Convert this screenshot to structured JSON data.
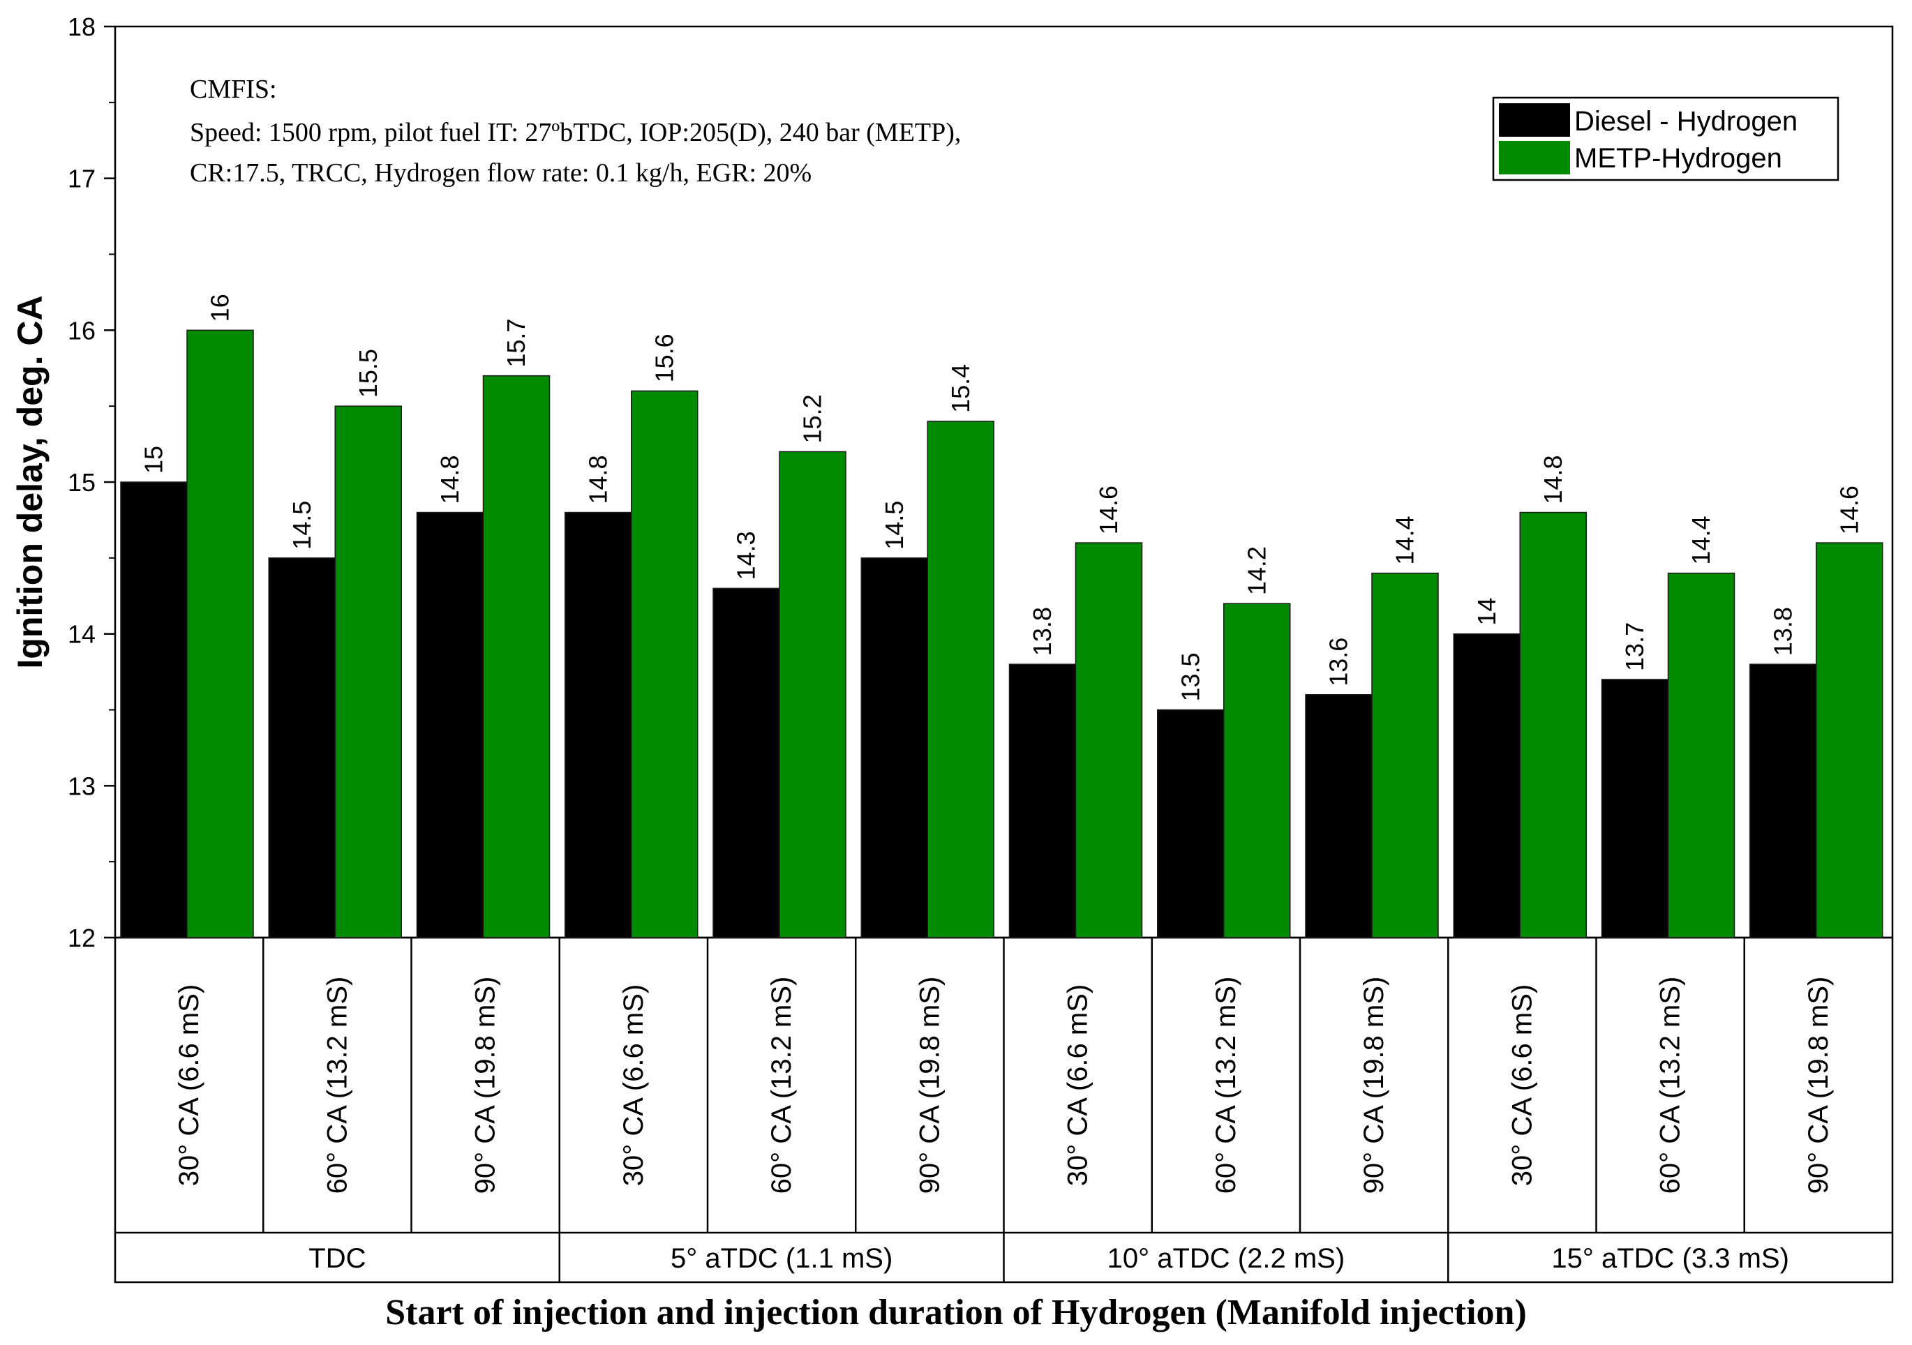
{
  "chart_data": {
    "type": "bar",
    "title": "",
    "ylabel": "Ignition delay, deg. CA",
    "xlabel": "Start of injection and injection duration of Hydrogen (Manifold injection)",
    "ylim": [
      12,
      18
    ],
    "yticks": [
      "12",
      "13",
      "14",
      "15",
      "16",
      "17",
      "18"
    ],
    "annotation": {
      "lines": [
        "CMFIS:",
        "Speed: 1500 rpm, pilot fuel IT: 27ºbTDC, IOP:205(D), 240 bar (METP),",
        "CR:17.5, TRCC, Hydrogen flow rate: 0.1 kg/h, EGR: 20%"
      ]
    },
    "groups": [
      {
        "label": "TDC",
        "categories": [
          "30° CA (6.6 mS)",
          "60° CA (13.2 mS)",
          "90° CA (19.8 mS)"
        ]
      },
      {
        "label": "5° aTDC (1.1 mS)",
        "categories": [
          "30° CA (6.6 mS)",
          "60° CA (13.2 mS)",
          "90° CA (19.8 mS)"
        ]
      },
      {
        "label": "10° aTDC (2.2 mS)",
        "categories": [
          "30° CA (6.6 mS)",
          "60° CA (13.2 mS)",
          "90° CA (19.8 mS)"
        ]
      },
      {
        "label": "15° aTDC (3.3 mS)",
        "categories": [
          "30° CA (6.6 mS)",
          "60° CA (13.2 mS)",
          "90° CA (19.8 mS)"
        ]
      }
    ],
    "series": [
      {
        "name": "Diesel - Hydrogen",
        "color": "#000000",
        "values": [
          15,
          14.5,
          14.8,
          14.8,
          14.3,
          14.5,
          13.8,
          13.5,
          13.6,
          14,
          13.7,
          13.8
        ],
        "labels": [
          "15",
          "14.5",
          "14.8",
          "14.8",
          "14.3",
          "14.5",
          "13.8",
          "13.5",
          "13.6",
          "14",
          "13.7",
          "13.8"
        ]
      },
      {
        "name": "METP-Hydrogen",
        "color": "#008a00",
        "values": [
          16,
          15.5,
          15.7,
          15.6,
          15.2,
          15.4,
          14.6,
          14.2,
          14.4,
          14.8,
          14.4,
          14.6
        ],
        "labels": [
          "16",
          "15.5",
          "15.7",
          "15.6",
          "15.2",
          "15.4",
          "14.6",
          "14.2",
          "14.4",
          "14.8",
          "14.4",
          "14.6"
        ]
      }
    ],
    "legend_position": "top-right",
    "grid": false
  }
}
